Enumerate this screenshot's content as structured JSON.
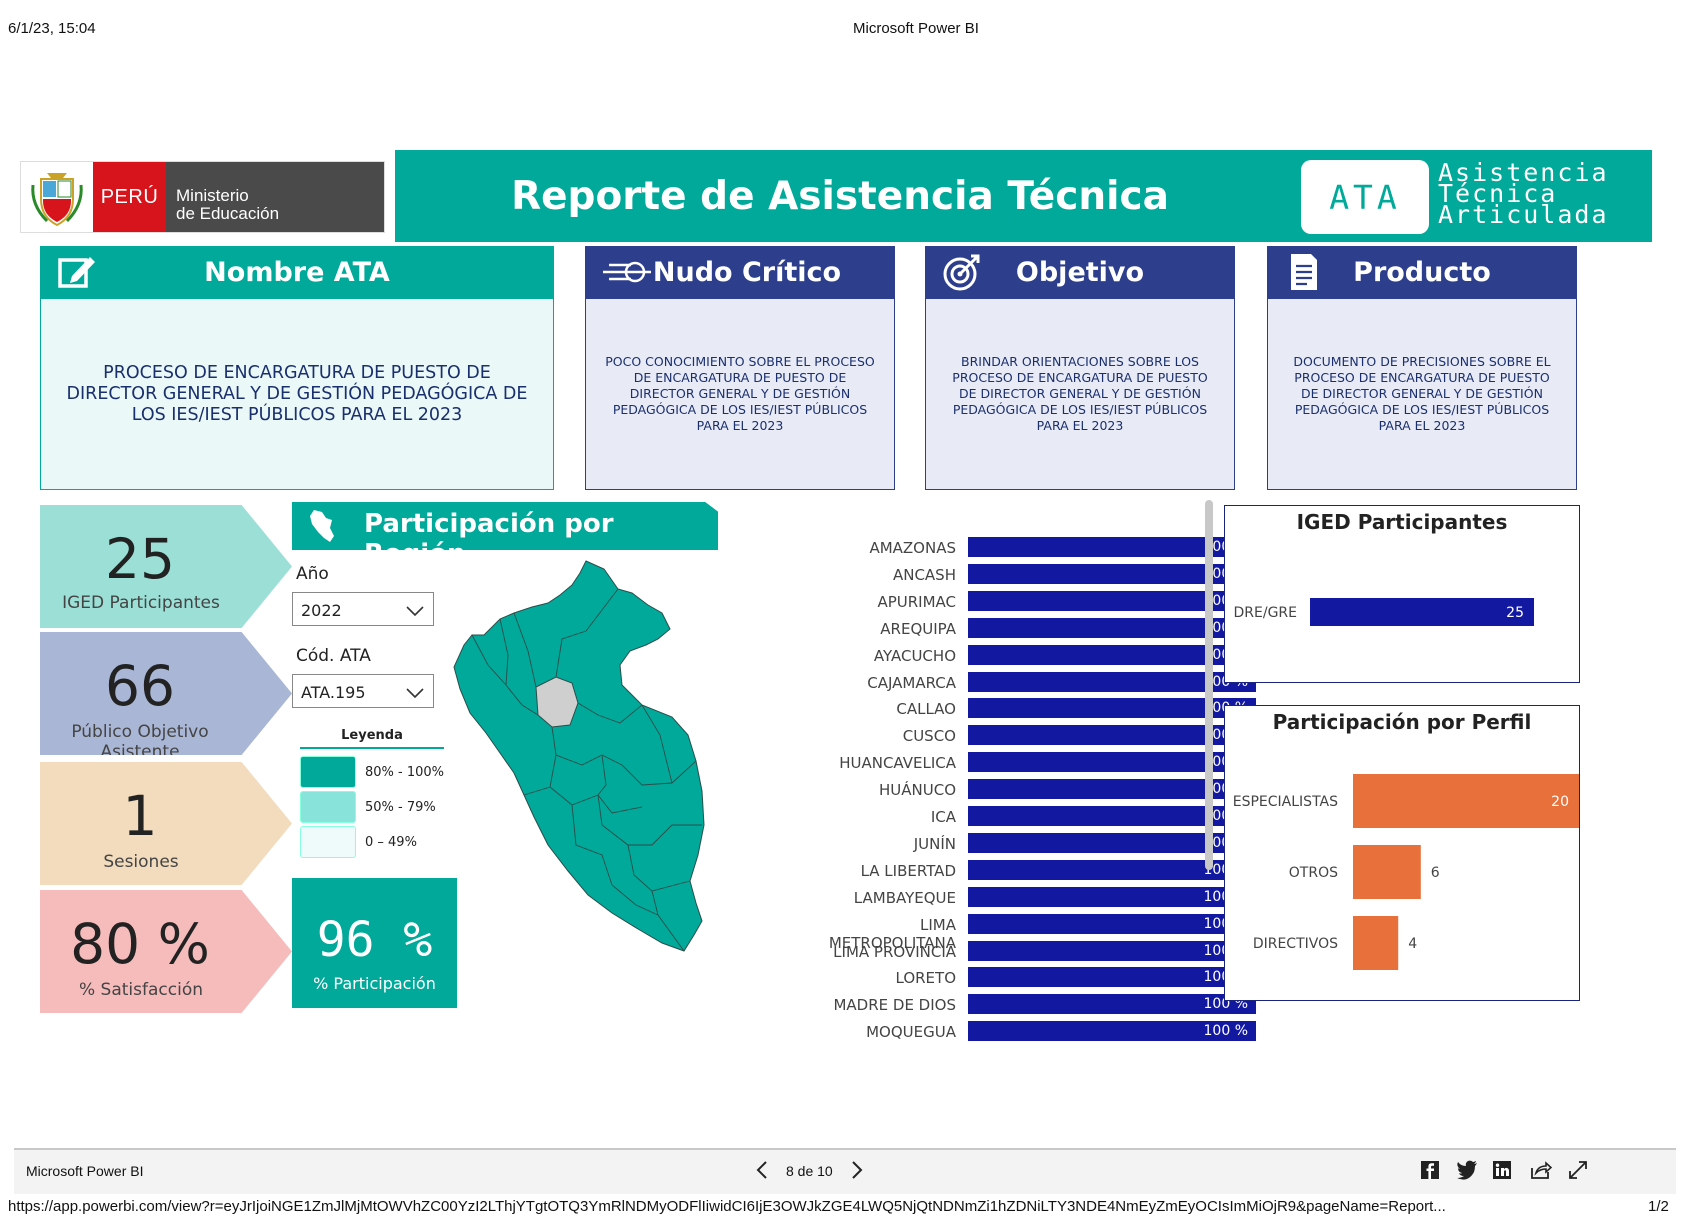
{
  "print_header": {
    "date": "6/1/23, 15:04",
    "title": "Microsoft Power BI"
  },
  "logo": {
    "country": "PERÚ",
    "ministry_line1": "Ministerio",
    "ministry_line2": "de Educación",
    "seal_text": "REPÚBLICA DEL PERÚ"
  },
  "banner": {
    "title": "Reporte de Asistencia Técnica",
    "badge": "ATA",
    "badge_line1": "Asistencia",
    "badge_line2": "Técnica",
    "badge_line3": "Articulada"
  },
  "cards": {
    "nombre": {
      "title": "Nombre ATA",
      "text": "PROCESO DE ENCARGATURA DE PUESTO DE DIRECTOR GENERAL Y DE GESTIÓN PEDAGÓGICA DE LOS IES/IEST PÚBLICOS PARA EL 2023"
    },
    "nudo": {
      "title": "Nudo Crítico",
      "text": "POCO CONOCIMIENTO SOBRE EL PROCESO DE ENCARGATURA DE PUESTO DE DIRECTOR GENERAL Y DE GESTIÓN PEDAGÓGICA DE LOS IES/IEST PÚBLICOS PARA EL 2023"
    },
    "objetivo": {
      "title": "Objetivo",
      "text": "BRINDAR ORIENTACIONES SOBRE LOS PROCESO DE ENCARGATURA DE PUESTO DE DIRECTOR GENERAL Y DE GESTIÓN PEDAGÓGICA DE LOS IES/IEST PÚBLICOS PARA EL 2023"
    },
    "producto": {
      "title": "Producto",
      "text": "DOCUMENTO DE PRECISIONES SOBRE EL PROCESO DE ENCARGATURA DE PUESTO DE DIRECTOR GENERAL Y DE GESTIÓN PEDAGÓGICA DE LOS IES/IEST PÚBLICOS PARA EL 2023"
    }
  },
  "kpis": {
    "iged": {
      "value": "25",
      "label": "IGED Participantes"
    },
    "publico": {
      "value": "66",
      "label": "Público Objetivo Asistente"
    },
    "sesiones": {
      "value": "1",
      "label": "Sesiones"
    },
    "satisfaccion": {
      "value": "80 %",
      "label": "% Satisfacción"
    },
    "participacion": {
      "value": "96 %",
      "label": "% Participación"
    }
  },
  "region_section": {
    "title": "Participación por Región",
    "year_label": "Año",
    "year_value": "2022",
    "code_label": "Cód. ATA",
    "code_value": "ATA.195",
    "legend_title": "Leyenda",
    "legend": [
      {
        "label": "80% - 100%",
        "color": "#00a999"
      },
      {
        "label": "50% - 79%",
        "color": "#88e4da"
      },
      {
        "label": "0 – 49%",
        "color": "#eefbfa"
      }
    ],
    "map_colors": {
      "high": "#00a999",
      "no_data": "#cfcfcf"
    }
  },
  "regions": [
    {
      "name": "AMAZONAS",
      "pct": "100 %",
      "value": 100
    },
    {
      "name": "ANCASH",
      "pct": "100 %",
      "value": 100
    },
    {
      "name": "APURIMAC",
      "pct": "100 %",
      "value": 100
    },
    {
      "name": "AREQUIPA",
      "pct": "100 %",
      "value": 100
    },
    {
      "name": "AYACUCHO",
      "pct": "100 %",
      "value": 100
    },
    {
      "name": "CAJAMARCA",
      "pct": "100 %",
      "value": 100
    },
    {
      "name": "CALLAO",
      "pct": "100 %",
      "value": 100
    },
    {
      "name": "CUSCO",
      "pct": "100 %",
      "value": 100
    },
    {
      "name": "HUANCAVELICA",
      "pct": "100 %",
      "value": 100
    },
    {
      "name": "HUÁNUCO",
      "pct": "100 %",
      "value": 100
    },
    {
      "name": "ICA",
      "pct": "100 %",
      "value": 100
    },
    {
      "name": "JUNÍN",
      "pct": "100 %",
      "value": 100
    },
    {
      "name": "LA LIBERTAD",
      "pct": "100 %",
      "value": 100
    },
    {
      "name": "LAMBAYEQUE",
      "pct": "100 %",
      "value": 100
    },
    {
      "name": "LIMA METROPOLITANA",
      "pct": "100 %",
      "value": 100
    },
    {
      "name": "LIMA PROVINCIA",
      "pct": "100 %",
      "value": 100
    },
    {
      "name": "LORETO",
      "pct": "100 %",
      "value": 100
    },
    {
      "name": "MADRE DE DIOS",
      "pct": "100 %",
      "value": 100
    },
    {
      "name": "MOQUEGUA",
      "pct": "100 %",
      "value": 100
    }
  ],
  "chart_data": [
    {
      "type": "bar",
      "title": "IGED Participantes",
      "categories": [
        "DRE/GRE"
      ],
      "values": [
        25
      ],
      "color": "#1219a0",
      "xlim": [
        0,
        25
      ]
    },
    {
      "type": "bar",
      "title": "Participación por Perfil",
      "categories": [
        "ESPECIALISTAS",
        "OTROS",
        "DIRECTIVOS"
      ],
      "values": [
        20,
        6,
        4
      ],
      "color": "#e8703a",
      "xlim": [
        0,
        20
      ]
    }
  ],
  "footer": {
    "app_name": "Microsoft Power BI",
    "page_indicator": "8 de 10",
    "url": "https://app.powerbi.com/view?r=eyJrIjoiNGE1ZmJlMjMtOWVhZC00YzI2LThjYTgtOTQ3YmRlNDMyODFlIiwidCI6IjE3OWJkZGE4LWQ5NjQtNDNmZi1hZDNiLTY3NDE4NmEyZmEyOCIsImMiOjR9&pageName=Report...",
    "print_page": "1/2",
    "icons": [
      "facebook-icon",
      "twitter-icon",
      "linkedin-icon",
      "share-icon",
      "fullscreen-icon"
    ]
  }
}
